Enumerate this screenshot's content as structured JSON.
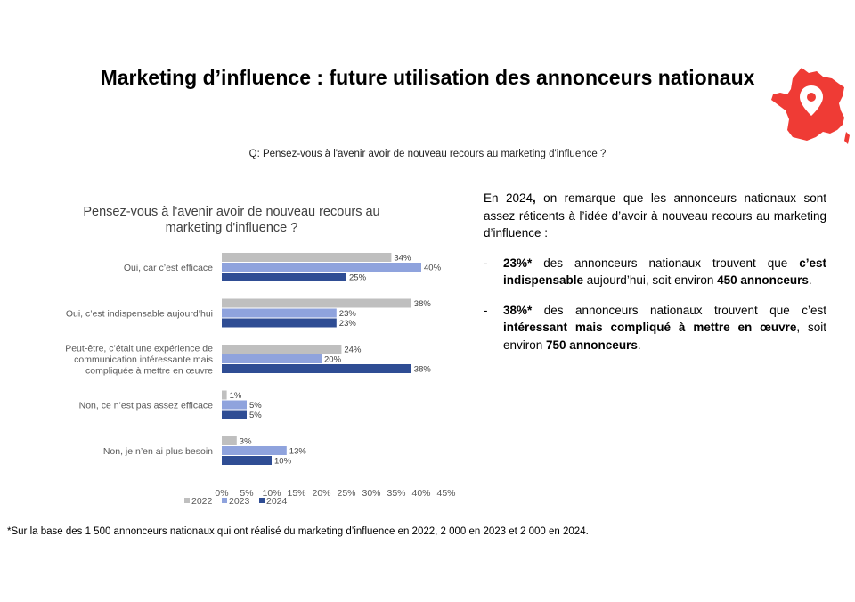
{
  "header": {
    "title": "Marketing d’influence : future utilisation des annonceurs nationaux",
    "question": "Q: Pensez-vous à l'avenir avoir de nouveau recours au marketing d'influence ?"
  },
  "chart_data": {
    "type": "bar",
    "orientation": "horizontal",
    "title_line1": "Pensez-vous à l'avenir avoir de nouveau recours au",
    "title_line2": "marketing d'influence ?",
    "categories": [
      [
        "Oui, car c’est efficace"
      ],
      [
        "Oui, c’est indispensable aujourd’hui"
      ],
      [
        "Peut-être, c’était une expérience de",
        "communication intéressante mais",
        "compliquée à mettre en œuvre"
      ],
      [
        "Non, ce n’est pas assez efficace"
      ],
      [
        "Non, je n’en ai plus besoin"
      ]
    ],
    "series": [
      {
        "name": "2022",
        "color": "#bfbfbf",
        "values": [
          34,
          38,
          24,
          1,
          3
        ]
      },
      {
        "name": "2023",
        "color": "#8fa3dd",
        "values": [
          40,
          23,
          20,
          5,
          13
        ]
      },
      {
        "name": "2024",
        "color": "#2f4d94",
        "values": [
          25,
          23,
          38,
          5,
          10
        ]
      }
    ],
    "xticks": [
      "0%",
      "5%",
      "10%",
      "15%",
      "20%",
      "25%",
      "30%",
      "35%",
      "40%",
      "45%"
    ],
    "xlim": [
      0,
      45
    ],
    "value_suffix": "%",
    "grid": false,
    "legend_position": "bottom-left"
  },
  "analysis": {
    "intro_a": "En 2024",
    "intro_b": ",",
    "intro_c": " on remarque que les annonceurs nationaux sont assez réticents à l’idée d’avoir à nouveau recours au marketing d’influence :",
    "b1_dash": "-",
    "b1_pct": "23%*",
    "b1_text1": " des annonceurs nationaux trouvent que ",
    "b1_strong": "c’est indispensable",
    "b1_text2": " aujourd’hui, soit environ ",
    "b1_count": "450 annonceurs",
    "b1_end": ".",
    "b2_dash": "-",
    "b2_pct": "38%*",
    "b2_text1": " des annonceurs nationaux trouvent que c’est ",
    "b2_strong": "intéressant mais compliqué à mettre en œuvre",
    "b2_text2": ", soit environ ",
    "b2_count": "750 annonceurs",
    "b2_end": "."
  },
  "footnote": "*Sur la base des 1 500 annonceurs nationaux qui ont réalisé du marketing d’influence en 2022, 2 000 en 2023 et 2 000 en 2024.",
  "icons": {
    "france_map": "france-map-pin-icon",
    "map_color": "#ef3b35"
  }
}
